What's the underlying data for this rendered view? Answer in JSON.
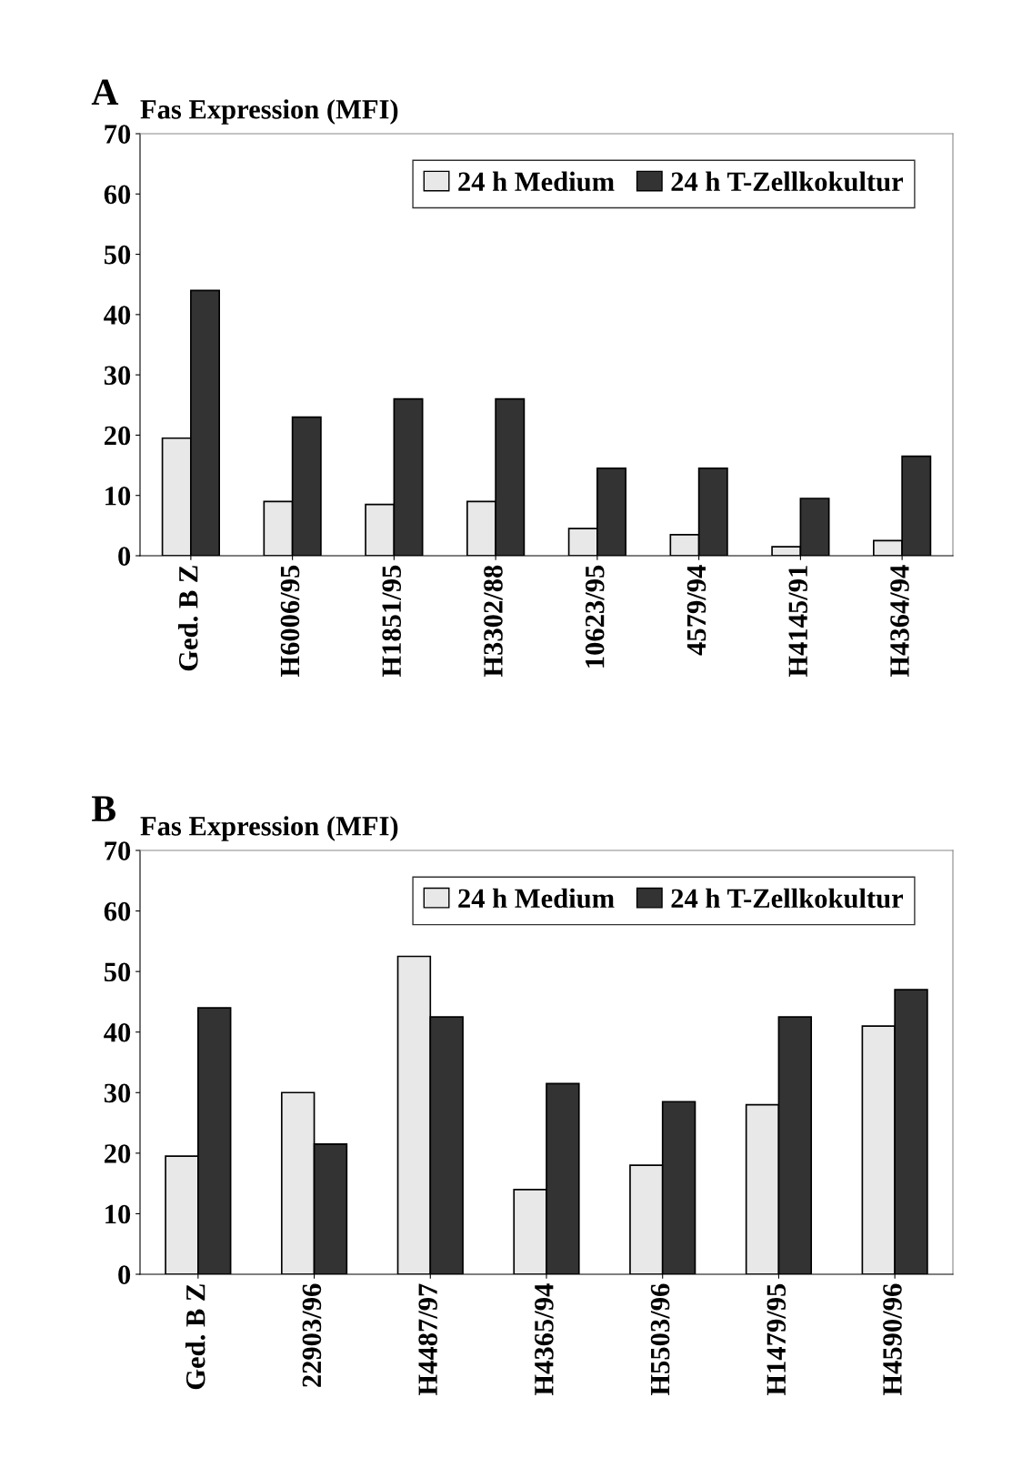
{
  "chart_data": [
    {
      "type": "bar",
      "title": "Fas Expression (MFI)",
      "annotations": [
        "A"
      ],
      "categories": [
        "Ged. B Z",
        "H6006/95",
        "H1851/95",
        "H3302/88",
        "10623/95",
        "4579/94",
        "H4145/91",
        "H4364/94"
      ],
      "series": [
        {
          "name": "24 h Medium",
          "color": "#e8e8e8",
          "values": [
            19.5,
            9,
            8.5,
            9,
            4.5,
            3.5,
            1.5,
            2.5
          ]
        },
        {
          "name": "24 h T-Zellkokultur",
          "color": "#333333",
          "values": [
            44,
            23,
            26,
            26,
            14.5,
            14.5,
            9.5,
            16.5
          ]
        }
      ],
      "ylim": [
        0,
        70
      ],
      "yticks": [
        0,
        10,
        20,
        30,
        40,
        50,
        60,
        70
      ],
      "legend": "top right"
    },
    {
      "type": "bar",
      "title": "Fas Expression (MFI)",
      "annotations": [
        "B"
      ],
      "categories": [
        "Ged. B Z",
        "22903/96",
        "H4487/97",
        "H4365/94",
        "H5503/96",
        "H1479/95",
        "H4590/96"
      ],
      "series": [
        {
          "name": "24 h Medium",
          "color": "#e8e8e8",
          "values": [
            19.5,
            30,
            52.5,
            14,
            18,
            28,
            41
          ]
        },
        {
          "name": "24 h T-Zellkokultur",
          "color": "#333333",
          "values": [
            44,
            21.5,
            42.5,
            31.5,
            28.5,
            42.5,
            47
          ]
        }
      ],
      "ylim": [
        0,
        70
      ],
      "yticks": [
        0,
        10,
        20,
        30,
        40,
        50,
        60,
        70
      ],
      "legend": "top right"
    }
  ]
}
